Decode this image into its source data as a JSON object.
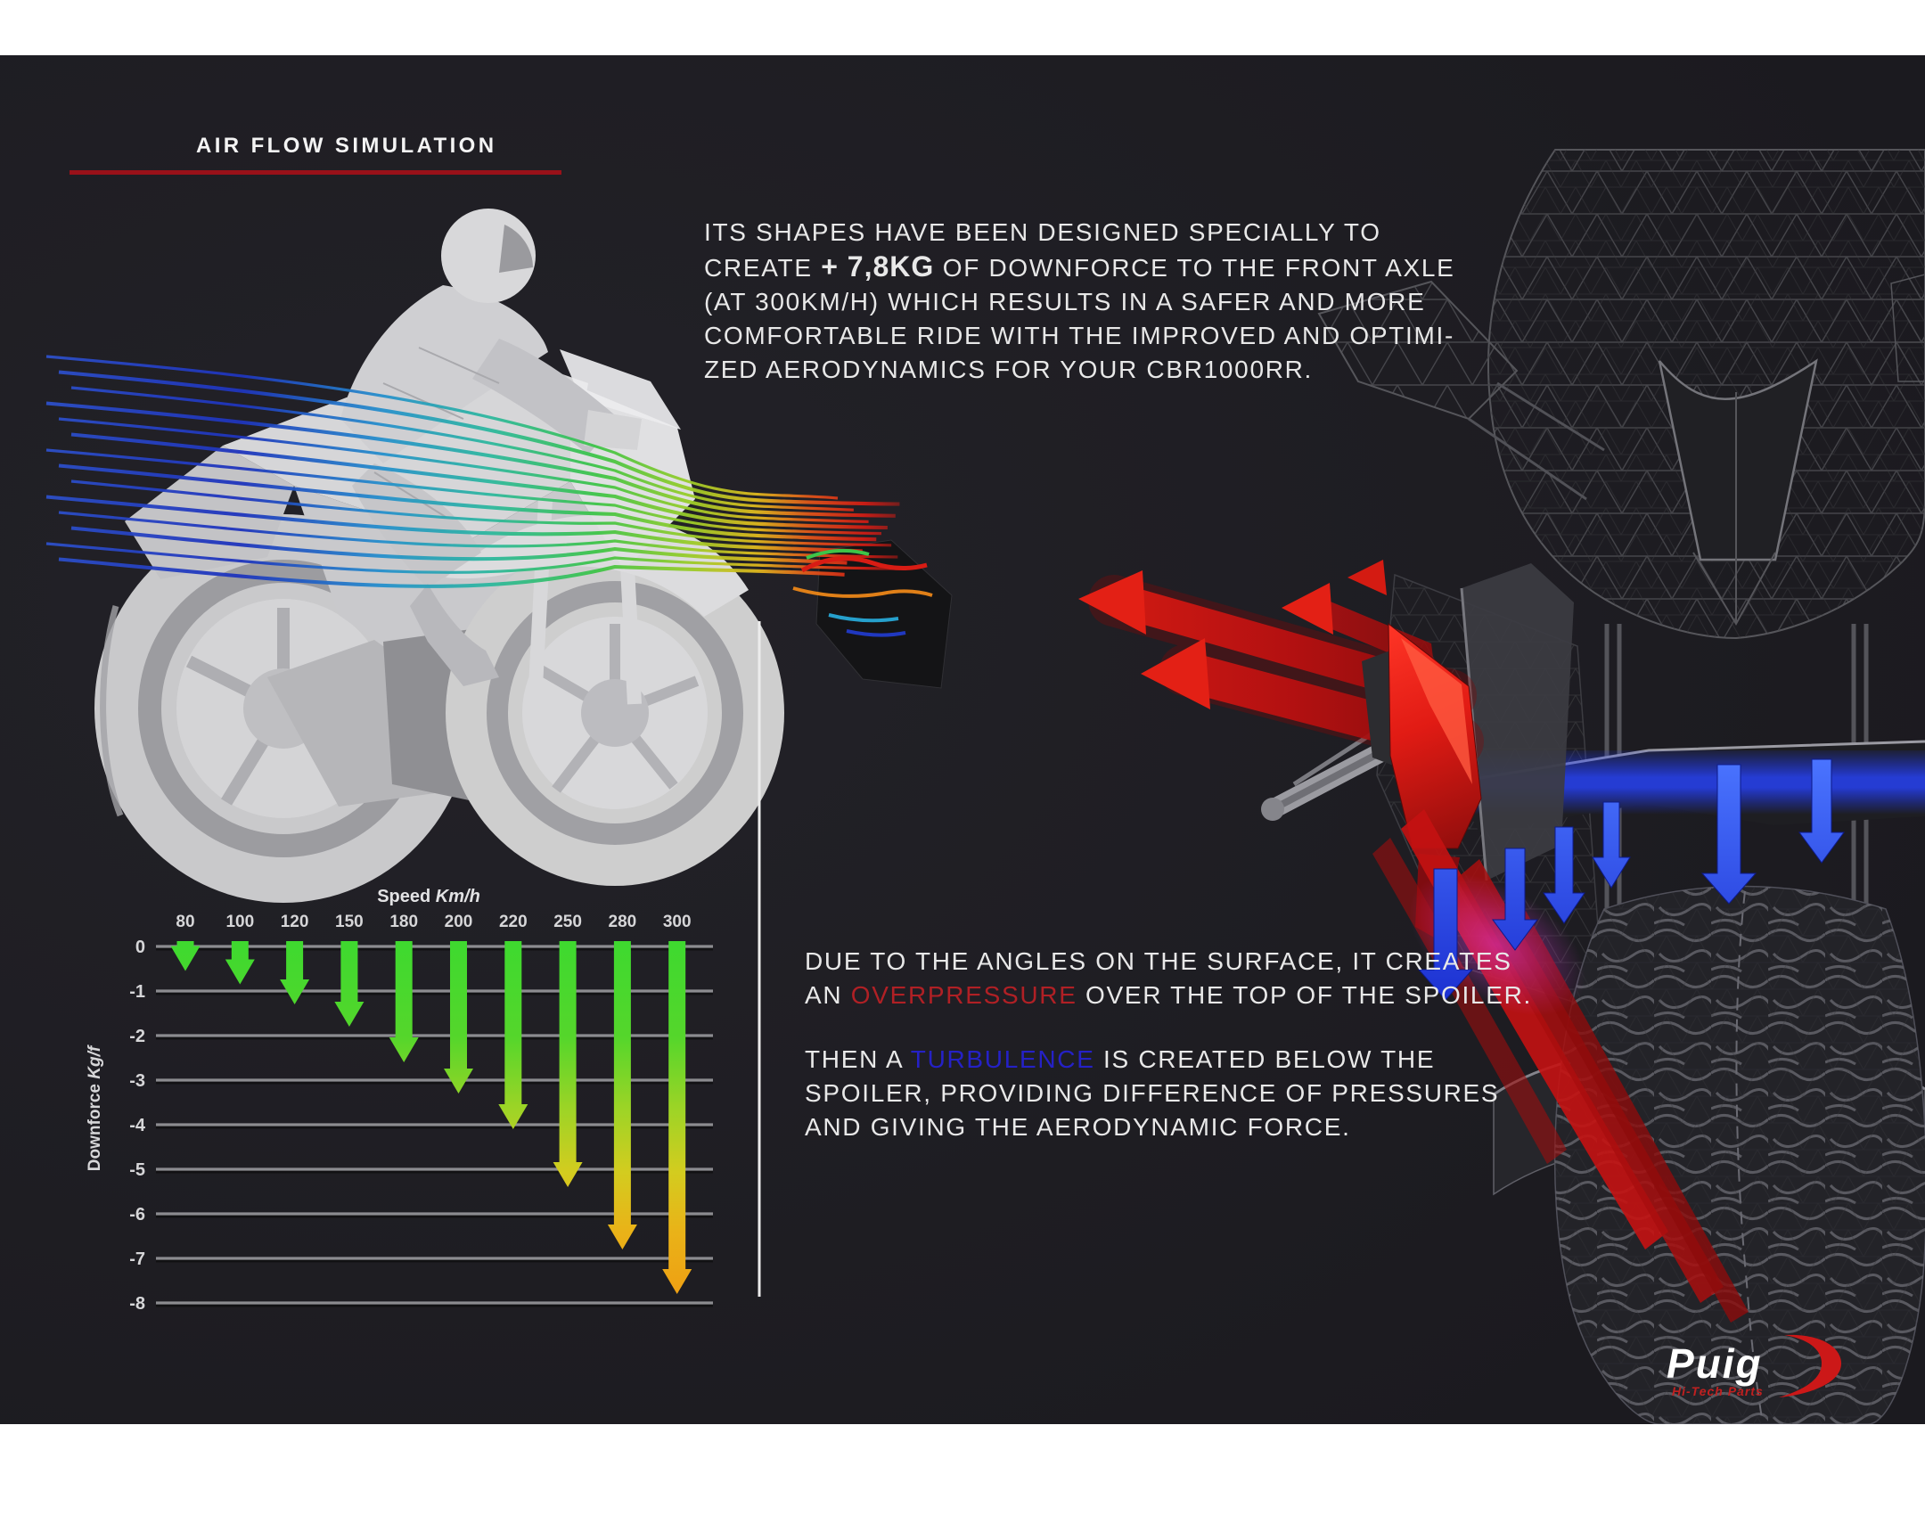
{
  "page": {
    "background": "#ffffff",
    "panel_background": "#1b1a1f"
  },
  "header": {
    "title": "AIR FLOW SIMULATION",
    "rule_color": "#991119"
  },
  "intro": {
    "l1": "ITS SHAPES HAVE BEEN DESIGNED SPECIALLY TO",
    "l2a": "CREATE ",
    "l2b": "+ 7,8KG",
    "l2c": " OF DOWNFORCE TO THE FRONT AXLE",
    "l3": "(AT 300KM/H) WHICH RESULTS IN A SAFER AND MORE",
    "l4": "COMFORTABLE RIDE WITH THE IMPROVED AND OPTIMI-",
    "l5": "ZED AERODYNAMICS FOR YOUR CBR1000RR."
  },
  "aero": {
    "p1l1": "DUE TO THE ANGLES ON THE SURFACE, IT CREATES",
    "p1l2a": "AN ",
    "p1l2b": "OVERPRESSURE",
    "p1l2c": " OVER THE TOP OF THE SPOILER.",
    "p2l1a": "THEN A ",
    "p2l1b": "TURBULENCE",
    "p2l1c": " IS CREATED BELOW THE",
    "p2l2": "SPOILER, PROVIDING DIFFERENCE OF PRESSURES",
    "p2l3": "AND GIVING THE AERODYNAMIC FORCE.",
    "overpressure_color": "#b02025",
    "turbulence_color": "#2521c6"
  },
  "chart_data": {
    "type": "bar",
    "title": "",
    "xlabel": "Speed Km/h",
    "ylabel": "Downforce Kg/f",
    "categories": [
      "80",
      "100",
      "120",
      "150",
      "180",
      "200",
      "220",
      "250",
      "280",
      "300"
    ],
    "values": [
      -0.55,
      -0.85,
      -1.3,
      -1.8,
      -2.6,
      -3.3,
      -4.1,
      -5.4,
      -6.8,
      -7.8
    ],
    "yticks": [
      0,
      -1,
      -2,
      -3,
      -4,
      -5,
      -6,
      -7,
      -8
    ],
    "ylim": [
      -8.6,
      0
    ],
    "grid": true,
    "legend_position": "none",
    "style": {
      "arrow_top_color": "#3fd92f",
      "arrow_tip_color": "#f09b12",
      "grid_color": "#8c8c90",
      "label_color": "#d6d6d8"
    }
  },
  "flow_colors": {
    "stream_blue": "#2d50c8",
    "stream_cyan": "#2690cc",
    "stream_teal": "#2eb89e",
    "stream_green": "#3ec448",
    "stream_red": "#d81c14",
    "overpressure_arrows": "#e01a12",
    "turbulence_arrows": "#2743ff"
  },
  "logo": {
    "brand": "Puig",
    "tagline": "Hi-Tech Parts",
    "accent": "#cc1818"
  }
}
